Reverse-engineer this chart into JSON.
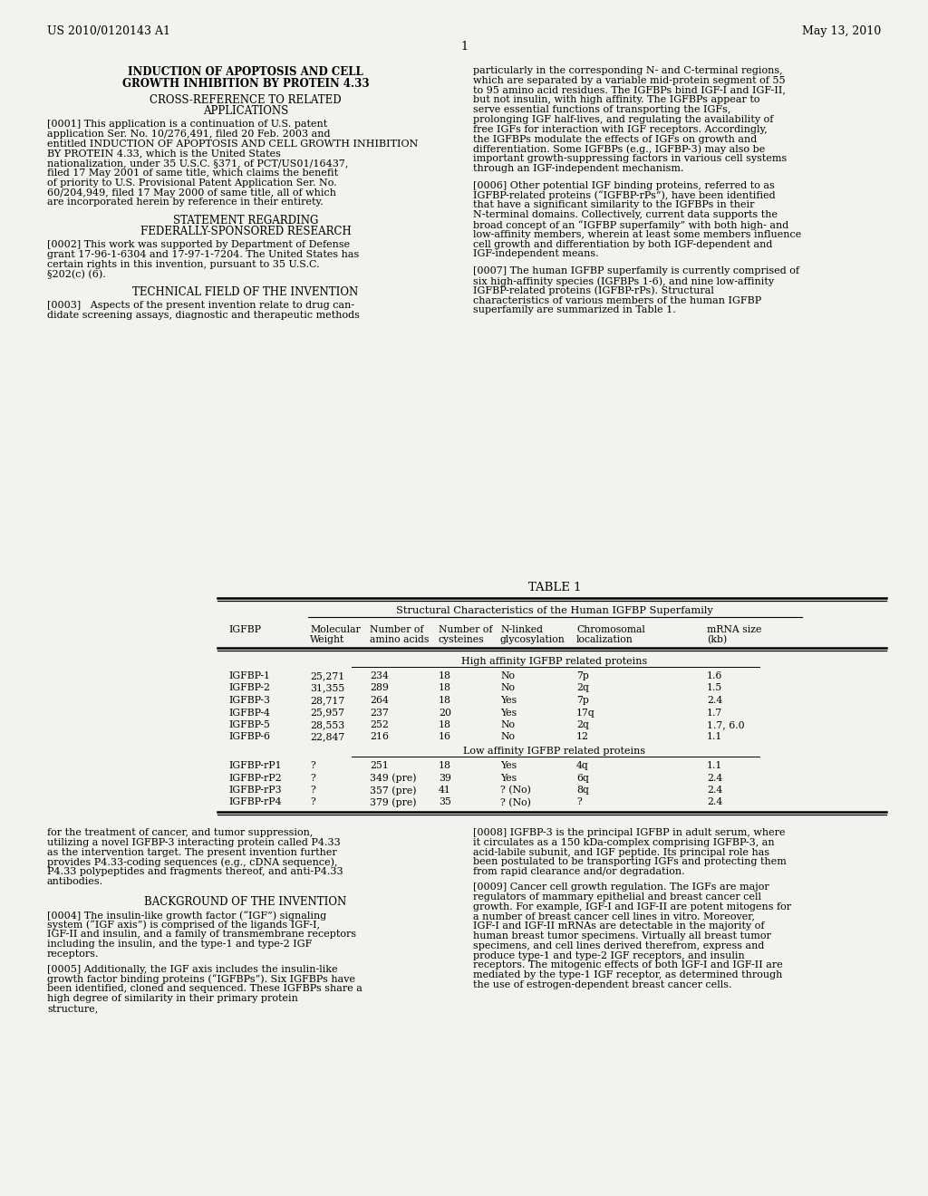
{
  "bg_color": "#f2f2ee",
  "header_left": "US 2010/0120143 A1",
  "header_right": "May 13, 2010",
  "page_number": "1",
  "table_high_rows": [
    [
      "IGFBP-1",
      "25,271",
      "234",
      "18",
      "No",
      "7p",
      "1.6"
    ],
    [
      "IGFBP-2",
      "31,355",
      "289",
      "18",
      "No",
      "2q",
      "1.5"
    ],
    [
      "IGFBP-3",
      "28,717",
      "264",
      "18",
      "Yes",
      "7p",
      "2.4"
    ],
    [
      "IGFBP-4",
      "25,957",
      "237",
      "20",
      "Yes",
      "17q",
      "1.7"
    ],
    [
      "IGFBP-5",
      "28,553",
      "252",
      "18",
      "No",
      "2q",
      "1.7, 6.0"
    ],
    [
      "IGFBP-6",
      "22,847",
      "216",
      "16",
      "No",
      "12",
      "1.1"
    ]
  ],
  "table_low_rows": [
    [
      "IGFBP-rP1",
      "?",
      "251",
      "18",
      "Yes",
      "4q",
      "1.1"
    ],
    [
      "IGFBP-rP2",
      "?",
      "349 (pre)",
      "39",
      "Yes",
      "6q",
      "2.4"
    ],
    [
      "IGFBP-rP3",
      "?",
      "357 (pre)",
      "41",
      "? (No)",
      "8q",
      "2.4"
    ],
    [
      "IGFBP-rP4",
      "?",
      "379 (pre)",
      "35",
      "? (No)",
      "?",
      "2.4"
    ]
  ]
}
